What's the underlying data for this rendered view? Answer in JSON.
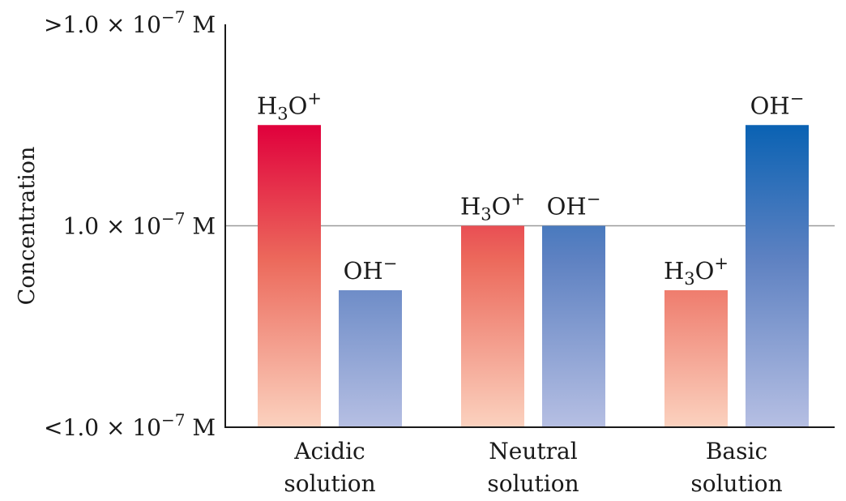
{
  "chart_data": {
    "type": "bar",
    "ylabel": "Concentration",
    "y_ticks": [
      {
        "value": "high",
        "label": ">1.0 × 10",
        "exp": "−7",
        "unit": " M"
      },
      {
        "value": "neutral",
        "label": "1.0 × 10",
        "exp": "−7",
        "unit": " M"
      },
      {
        "value": "low",
        "label": "<1.0 × 10",
        "exp": "−7",
        "unit": " M"
      }
    ],
    "ylim_note": "qualitative scale: bottom = <1.0×10^-7 M, middle = 1.0×10^-7 M, top = >1.0×10^-7 M",
    "neutral_level": 0.5,
    "categories": [
      {
        "line1": "Acidic",
        "line2": "solution"
      },
      {
        "line1": "Neutral",
        "line2": "solution"
      },
      {
        "line1": "Basic",
        "line2": "solution"
      }
    ],
    "series": [
      {
        "name": "H3O+",
        "label_base": "H",
        "label_sub": "3",
        "label_mid": "O",
        "label_sup": "+",
        "color_top": "#e0003c",
        "color_mid": "#ec6a5c",
        "color_bottom": "#fbd2bf",
        "values": [
          0.75,
          0.5,
          0.34
        ]
      },
      {
        "name": "OH−",
        "label_base": "OH",
        "label_sup": "−",
        "color_top": "#0a62b3",
        "color_mid": "#5f82c2",
        "color_bottom": "#b6bfe3",
        "values": [
          0.34,
          0.5,
          0.75
        ]
      }
    ],
    "grid": false,
    "legend": "none"
  }
}
